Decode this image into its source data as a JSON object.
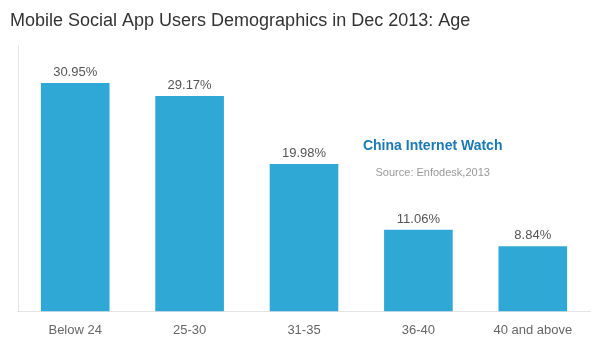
{
  "chart_data": {
    "type": "bar",
    "title": "Mobile Social App Users Demographics in Dec 2013: Age",
    "categories": [
      "Below 24",
      "25-30",
      "31-35",
      "36-40",
      "40 and above"
    ],
    "values": [
      30.95,
      29.17,
      19.98,
      11.06,
      8.84
    ],
    "value_labels": [
      "30.95%",
      "29.17%",
      "19.98%",
      "11.06%",
      "8.84%"
    ],
    "data_labels": true,
    "color": "#2fa8d5",
    "ylim": [
      0,
      36
    ],
    "yticks": [],
    "tick_labels": "x",
    "grid": false,
    "annotations": [
      {
        "text": "China Internet Watch",
        "color": "#1a7ab5"
      },
      {
        "text": "Source: Enfodesk,2013",
        "color": "#999999"
      }
    ]
  }
}
